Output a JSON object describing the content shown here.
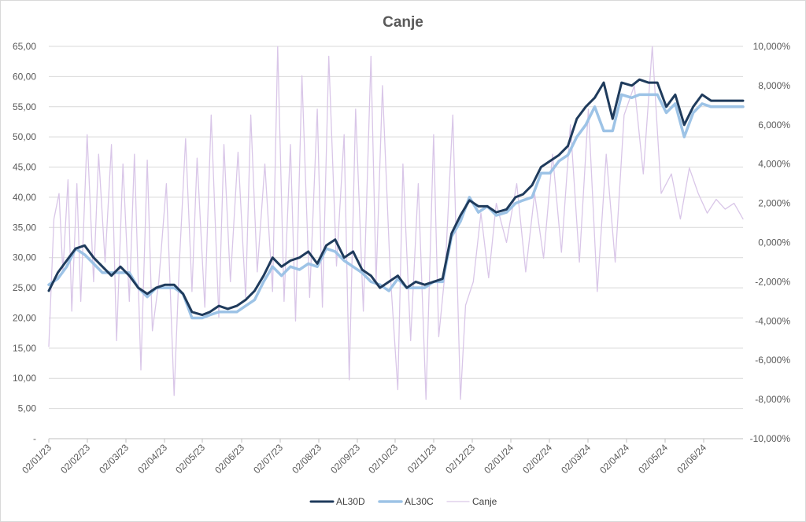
{
  "chart_data": {
    "type": "line",
    "title": "Canje",
    "grid": true,
    "legend_position": "bottom",
    "x_tick_labels": [
      "02/01/23",
      "02/02/23",
      "02/03/23",
      "02/04/23",
      "02/05/23",
      "02/06/23",
      "02/07/23",
      "02/08/23",
      "02/09/23",
      "02/10/23",
      "02/11/23",
      "02/12/23",
      "02/01/24",
      "02/02/24",
      "02/03/24",
      "02/04/24",
      "02/05/24",
      "02/06/24"
    ],
    "y_left": {
      "range": [
        0,
        65
      ],
      "tick_values": [
        0,
        5,
        10,
        15,
        20,
        25,
        30,
        35,
        40,
        45,
        50,
        55,
        60,
        65
      ],
      "tick_labels": [
        "-",
        "5,00",
        "10,00",
        "15,00",
        "20,00",
        "25,00",
        "30,00",
        "35,00",
        "40,00",
        "45,00",
        "50,00",
        "55,00",
        "60,00",
        "65,00"
      ]
    },
    "y_right": {
      "range": [
        -10000,
        10000
      ],
      "tick_values": [
        -10000,
        -8000,
        -6000,
        -4000,
        -2000,
        0,
        2000,
        4000,
        6000,
        8000,
        10000
      ],
      "tick_labels": [
        "-10,000%",
        "-8,000%",
        "-6,000%",
        "-4,000%",
        "-2,000%",
        "0,000%",
        "2,000%",
        "4,000%",
        "6,000%",
        "8,000%",
        "10,000%"
      ]
    },
    "series": [
      {
        "name": "AL30D",
        "axis": "left",
        "color": "#1f3b5c",
        "x": [
          "2023-01-02",
          "2023-01-09",
          "2023-01-16",
          "2023-01-23",
          "2023-01-30",
          "2023-02-06",
          "2023-02-13",
          "2023-02-20",
          "2023-02-27",
          "2023-03-06",
          "2023-03-13",
          "2023-03-20",
          "2023-03-27",
          "2023-04-03",
          "2023-04-10",
          "2023-04-17",
          "2023-04-24",
          "2023-05-02",
          "2023-05-08",
          "2023-05-15",
          "2023-05-22",
          "2023-05-29",
          "2023-06-05",
          "2023-06-12",
          "2023-06-19",
          "2023-06-26",
          "2023-07-03",
          "2023-07-10",
          "2023-07-17",
          "2023-07-24",
          "2023-07-31",
          "2023-08-07",
          "2023-08-14",
          "2023-08-21",
          "2023-08-28",
          "2023-09-04",
          "2023-09-11",
          "2023-09-18",
          "2023-09-25",
          "2023-10-02",
          "2023-10-09",
          "2023-10-16",
          "2023-10-23",
          "2023-10-30",
          "2023-11-06",
          "2023-11-13",
          "2023-11-20",
          "2023-11-27",
          "2023-12-04",
          "2023-12-11",
          "2023-12-18",
          "2023-12-26",
          "2024-01-02",
          "2024-01-08",
          "2024-01-15",
          "2024-01-22",
          "2024-01-29",
          "2024-02-05",
          "2024-02-12",
          "2024-02-19",
          "2024-02-26",
          "2024-03-04",
          "2024-03-11",
          "2024-03-18",
          "2024-03-25",
          "2024-04-02",
          "2024-04-08",
          "2024-04-15",
          "2024-04-22",
          "2024-04-29",
          "2024-05-06",
          "2024-05-13",
          "2024-05-20",
          "2024-05-27",
          "2024-06-03",
          "2024-06-10",
          "2024-06-17",
          "2024-06-24",
          "2024-06-28"
        ],
        "values": [
          24.5,
          27.5,
          29.5,
          31.5,
          32.0,
          30.0,
          28.5,
          27.0,
          28.5,
          27.0,
          25.0,
          24.0,
          25.0,
          25.5,
          25.5,
          24.0,
          21.0,
          20.5,
          21.0,
          22.0,
          21.5,
          22.0,
          23.0,
          24.5,
          27.0,
          30.0,
          28.5,
          29.5,
          30.0,
          31.0,
          29.0,
          32.0,
          33.0,
          30.0,
          31.0,
          28.0,
          27.0,
          25.0,
          26.0,
          27.0,
          25.0,
          26.0,
          25.5,
          26.0,
          26.5,
          34.0,
          37.0,
          39.5,
          38.5,
          38.5,
          37.5,
          38.0,
          40.0,
          40.5,
          42.0,
          45.0,
          46.0,
          47.0,
          48.5,
          53.0,
          55.0,
          56.5,
          59.0,
          53.0,
          59.0,
          58.5,
          59.5,
          59.0,
          59.0,
          55.0,
          57.0,
          52.0,
          55.0,
          57.0,
          56.0,
          56.0,
          56.0,
          56.0,
          56.0
        ],
        "label_note": ""
      },
      {
        "name": "AL30C",
        "axis": "left",
        "color": "#9dc3e6",
        "x": [
          "2023-01-02",
          "2023-01-09",
          "2023-01-16",
          "2023-01-23",
          "2023-01-30",
          "2023-02-06",
          "2023-02-13",
          "2023-02-20",
          "2023-02-27",
          "2023-03-06",
          "2023-03-13",
          "2023-03-20",
          "2023-03-27",
          "2023-04-03",
          "2023-04-10",
          "2023-04-17",
          "2023-04-24",
          "2023-05-02",
          "2023-05-08",
          "2023-05-15",
          "2023-05-22",
          "2023-05-29",
          "2023-06-05",
          "2023-06-12",
          "2023-06-19",
          "2023-06-26",
          "2023-07-03",
          "2023-07-10",
          "2023-07-17",
          "2023-07-24",
          "2023-07-31",
          "2023-08-07",
          "2023-08-14",
          "2023-08-21",
          "2023-08-28",
          "2023-09-04",
          "2023-09-11",
          "2023-09-18",
          "2023-09-25",
          "2023-10-02",
          "2023-10-09",
          "2023-10-16",
          "2023-10-23",
          "2023-10-30",
          "2023-11-06",
          "2023-11-13",
          "2023-11-20",
          "2023-11-27",
          "2023-12-04",
          "2023-12-11",
          "2023-12-18",
          "2023-12-26",
          "2024-01-02",
          "2024-01-08",
          "2024-01-15",
          "2024-01-22",
          "2024-01-29",
          "2024-02-05",
          "2024-02-12",
          "2024-02-19",
          "2024-02-26",
          "2024-03-04",
          "2024-03-11",
          "2024-03-18",
          "2024-03-25",
          "2024-04-02",
          "2024-04-08",
          "2024-04-15",
          "2024-04-22",
          "2024-04-29",
          "2024-05-06",
          "2024-05-13",
          "2024-05-20",
          "2024-05-27",
          "2024-06-03",
          "2024-06-10",
          "2024-06-17",
          "2024-06-24",
          "2024-06-28"
        ],
        "values": [
          25.5,
          26.5,
          28.5,
          31.5,
          30.5,
          29.0,
          27.5,
          27.5,
          27.5,
          27.5,
          25.0,
          23.5,
          25.0,
          25.0,
          25.0,
          24.0,
          20.0,
          20.0,
          20.5,
          21.0,
          21.0,
          21.0,
          22.0,
          23.0,
          26.0,
          28.5,
          27.0,
          28.5,
          28.0,
          29.0,
          28.5,
          31.5,
          31.0,
          29.5,
          28.5,
          27.5,
          26.0,
          25.5,
          24.5,
          26.5,
          25.0,
          25.0,
          25.0,
          26.0,
          26.0,
          33.5,
          36.0,
          40.0,
          37.5,
          38.5,
          37.0,
          37.5,
          39.0,
          39.5,
          40.0,
          44.0,
          44.0,
          46.0,
          47.0,
          50.0,
          52.0,
          55.0,
          51.0,
          51.0,
          57.0,
          56.5,
          57.0,
          57.0,
          57.0,
          54.0,
          55.5,
          50.0,
          54.0,
          55.5,
          55.0,
          55.0,
          55.0,
          55.0,
          55.0
        ]
      },
      {
        "name": "Canje",
        "axis": "right",
        "color": "#d9c6e8",
        "x": [
          "2023-01-02",
          "2023-01-06",
          "2023-01-10",
          "2023-01-13",
          "2023-01-17",
          "2023-01-20",
          "2023-01-24",
          "2023-01-27",
          "2023-02-01",
          "2023-02-06",
          "2023-02-10",
          "2023-02-15",
          "2023-02-20",
          "2023-02-24",
          "2023-03-01",
          "2023-03-06",
          "2023-03-10",
          "2023-03-15",
          "2023-03-20",
          "2023-03-24",
          "2023-03-29",
          "2023-04-04",
          "2023-04-10",
          "2023-04-14",
          "2023-04-19",
          "2023-04-24",
          "2023-04-28",
          "2023-05-04",
          "2023-05-09",
          "2023-05-15",
          "2023-05-19",
          "2023-05-24",
          "2023-05-30",
          "2023-06-05",
          "2023-06-09",
          "2023-06-14",
          "2023-06-20",
          "2023-06-26",
          "2023-06-30",
          "2023-07-05",
          "2023-07-10",
          "2023-07-14",
          "2023-07-19",
          "2023-07-25",
          "2023-07-31",
          "2023-08-04",
          "2023-08-09",
          "2023-08-15",
          "2023-08-21",
          "2023-08-25",
          "2023-08-30",
          "2023-09-05",
          "2023-09-11",
          "2023-09-15",
          "2023-09-20",
          "2023-09-26",
          "2023-10-02",
          "2023-10-06",
          "2023-10-12",
          "2023-10-18",
          "2023-10-24",
          "2023-10-30",
          "2023-11-03",
          "2023-11-08",
          "2023-11-14",
          "2023-11-20",
          "2023-11-24",
          "2023-11-30",
          "2023-12-06",
          "2023-12-12",
          "2023-12-18",
          "2023-12-26",
          "2024-01-03",
          "2024-01-10",
          "2024-01-17",
          "2024-01-24",
          "2024-01-31",
          "2024-02-07",
          "2024-02-14",
          "2024-02-21",
          "2024-02-28",
          "2024-03-06",
          "2024-03-13",
          "2024-03-20",
          "2024-03-27",
          "2024-04-04",
          "2024-04-11",
          "2024-04-18",
          "2024-04-25",
          "2024-05-03",
          "2024-05-10",
          "2024-05-17",
          "2024-05-24",
          "2024-05-31",
          "2024-06-07",
          "2024-06-14",
          "2024-06-21",
          "2024-06-28"
        ],
        "values": [
          -5300,
          1200,
          2500,
          -1500,
          3200,
          -3500,
          3000,
          -3000,
          5500,
          -2000,
          4500,
          -1000,
          5000,
          -5000,
          4000,
          -3000,
          4500,
          -6500,
          4200,
          -4500,
          -2000,
          3000,
          -7800,
          -1200,
          5300,
          -2500,
          4300,
          -3300,
          6500,
          -3800,
          5000,
          -2000,
          4600,
          -2800,
          6500,
          -1500,
          4000,
          -2500,
          10000,
          -3000,
          5000,
          -4000,
          8500,
          -2800,
          6800,
          -3300,
          9500,
          -1200,
          5500,
          -7000,
          6800,
          -3500,
          9500,
          -2000,
          8000,
          -1500,
          -7500,
          4000,
          -5000,
          3000,
          -8000,
          5500,
          -4800,
          -1500,
          6500,
          -8000,
          -3200,
          -2000,
          1500,
          -1800,
          2000,
          0,
          3000,
          -1500,
          2500,
          -800,
          4500,
          -500,
          6000,
          -1000,
          6800,
          -2500,
          4500,
          -1000,
          6500,
          8000,
          3500,
          10000,
          2500,
          3500,
          1200,
          3800,
          2500,
          1500,
          2200,
          1700,
          2000,
          1200
        ]
      }
    ],
    "legend": [
      {
        "name": "AL30D"
      },
      {
        "name": "AL30C"
      },
      {
        "name": "Canje"
      }
    ]
  }
}
